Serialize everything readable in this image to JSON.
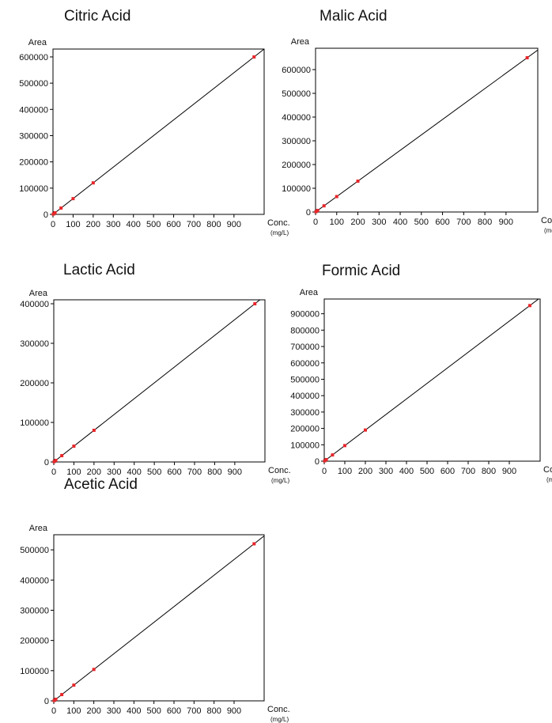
{
  "chart_data": [
    {
      "type": "scatter",
      "title": "Citric Acid",
      "ylabel": "Area",
      "xlabel": "Conc.",
      "xunit": "(mg/L)",
      "xlim": [
        0,
        1050
      ],
      "ylim": [
        0,
        630000
      ],
      "xticks": [
        0,
        100,
        200,
        300,
        400,
        500,
        600,
        700,
        800,
        900
      ],
      "yticks": [
        0,
        100000,
        200000,
        300000,
        400000,
        500000,
        600000
      ],
      "grid": false,
      "series": [
        {
          "x": [
            2,
            10,
            40,
            100,
            200,
            1000
          ],
          "y": [
            1200,
            6000,
            24000,
            60000,
            120000,
            600000
          ]
        }
      ],
      "fit_line": {
        "x": [
          0,
          1050
        ],
        "y": [
          0,
          630000
        ]
      }
    },
    {
      "type": "scatter",
      "title": "Malic Acid",
      "ylabel": "Area",
      "xlabel": "Conc.",
      "xunit": "(mg/L)",
      "xlim": [
        0,
        1050
      ],
      "ylim": [
        0,
        690000
      ],
      "xticks": [
        0,
        100,
        200,
        300,
        400,
        500,
        600,
        700,
        800,
        900
      ],
      "yticks": [
        0,
        100000,
        200000,
        300000,
        400000,
        500000,
        600000
      ],
      "grid": false,
      "series": [
        {
          "x": [
            2,
            10,
            40,
            100,
            200,
            1000
          ],
          "y": [
            1300,
            6500,
            26000,
            65000,
            130000,
            650000
          ]
        }
      ],
      "fit_line": {
        "x": [
          0,
          1050
        ],
        "y": [
          0,
          682500
        ]
      }
    },
    {
      "type": "scatter",
      "title": "Lactic Acid",
      "ylabel": "Area",
      "xlabel": "Conc.",
      "xunit": "(mg/L)",
      "xlim": [
        0,
        1050
      ],
      "ylim": [
        0,
        410000
      ],
      "xticks": [
        0,
        100,
        200,
        300,
        400,
        500,
        600,
        700,
        800,
        900
      ],
      "yticks": [
        0,
        100000,
        200000,
        300000,
        400000
      ],
      "grid": false,
      "series": [
        {
          "x": [
            2,
            10,
            40,
            100,
            200,
            1000
          ],
          "y": [
            800,
            4000,
            16000,
            40000,
            80000,
            400000
          ]
        }
      ],
      "fit_line": {
        "x": [
          0,
          1050
        ],
        "y": [
          0,
          420000
        ]
      }
    },
    {
      "type": "scatter",
      "title": "Formic Acid",
      "ylabel": "Area",
      "xlabel": "Conc.",
      "xunit": "(mg/L)",
      "xlim": [
        0,
        1050
      ],
      "ylim": [
        0,
        990000
      ],
      "xticks": [
        0,
        100,
        200,
        300,
        400,
        500,
        600,
        700,
        800,
        900
      ],
      "yticks": [
        0,
        100000,
        200000,
        300000,
        400000,
        500000,
        600000,
        700000,
        800000,
        900000
      ],
      "grid": false,
      "series": [
        {
          "x": [
            2,
            10,
            40,
            100,
            200,
            1000
          ],
          "y": [
            1900,
            9500,
            38000,
            95000,
            190000,
            950000
          ]
        }
      ],
      "fit_line": {
        "x": [
          0,
          1050
        ],
        "y": [
          0,
          997500
        ]
      }
    },
    {
      "type": "scatter",
      "title": "Acetic Acid",
      "ylabel": "Area",
      "xlabel": "Conc.",
      "xunit": "(mg/L)",
      "xlim": [
        0,
        1050
      ],
      "ylim": [
        0,
        550000
      ],
      "xticks": [
        0,
        100,
        200,
        300,
        400,
        500,
        600,
        700,
        800,
        900
      ],
      "yticks": [
        0,
        100000,
        200000,
        300000,
        400000,
        500000
      ],
      "grid": false,
      "series": [
        {
          "x": [
            2,
            10,
            40,
            100,
            200,
            1000
          ],
          "y": [
            1040,
            5200,
            20800,
            52000,
            104000,
            520000
          ]
        }
      ],
      "fit_line": {
        "x": [
          0,
          1050
        ],
        "y": [
          0,
          546000
        ]
      }
    }
  ],
  "colors": {
    "point": "#e8262a",
    "line": "#000000",
    "axis": "#000000"
  }
}
